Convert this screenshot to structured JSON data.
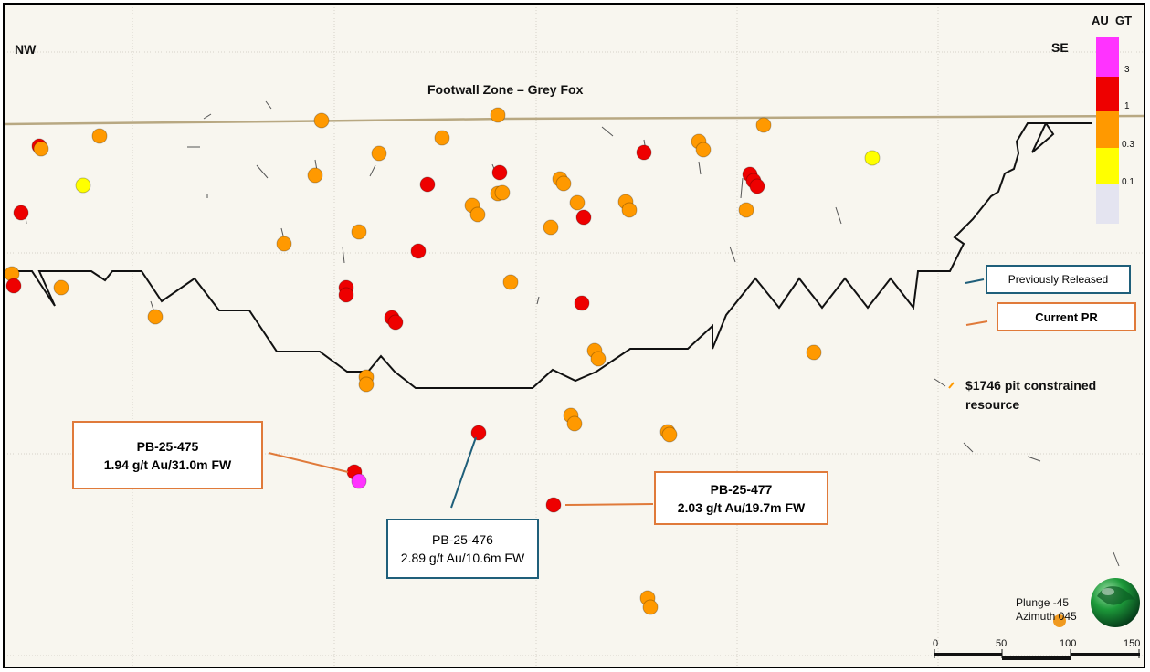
{
  "directions": {
    "left": "NW",
    "right": "SE"
  },
  "zone_title": "Footwall Zone – Grey Fox",
  "colorbar": {
    "title": "AU_GT",
    "ticks": [
      "3",
      "1",
      "0.3",
      "0.1"
    ],
    "colors": {
      "gt3": "#ff33ff",
      "1to3": "#ee0000",
      "03to1": "#ff9900",
      "01to03": "#ffff00",
      "lt01": "#e4e4f0"
    }
  },
  "callouts": {
    "pb475": {
      "hole": "PB-25-475",
      "result": "1.94 g/t Au/31.0m FW"
    },
    "pb476": {
      "hole": "PB-25-476",
      "result": "2.89 g/t Au/10.6m FW"
    },
    "pb477": {
      "hole": "PB-25-477",
      "result": "2.03 g/t Au/19.7m FW"
    }
  },
  "legend": {
    "previously_released": "Previously Released",
    "current_pr": "Current PR",
    "pit_resource": "$1746 pit constrained resource",
    "colors": {
      "previously_released": "#1f5f7a",
      "current_pr": "#e07a3a",
      "pit_line": "#111111",
      "topography": "#b8a882"
    }
  },
  "orientation": {
    "plunge": "Plunge -45",
    "azimuth": "Azimuth 045"
  },
  "scale_bar": {
    "ticks": [
      "0",
      "50",
      "100",
      "150"
    ]
  }
}
